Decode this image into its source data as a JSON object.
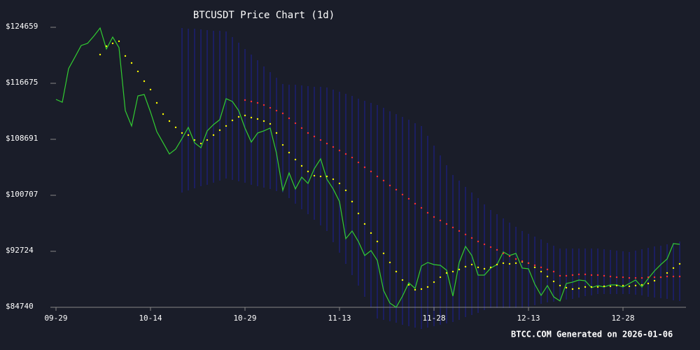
{
  "chart_data": {
    "type": "line",
    "title": "BTCUSDT Price Chart (1d)",
    "caption": "BTCC.COM Generated on 2026-01-06",
    "background": "#1a1d29",
    "categories": [
      "09-29",
      null,
      null,
      null,
      null,
      null,
      null,
      null,
      null,
      null,
      null,
      null,
      null,
      null,
      null,
      "10-14",
      null,
      null,
      null,
      null,
      null,
      null,
      null,
      null,
      null,
      null,
      null,
      null,
      null,
      null,
      "10-29",
      null,
      null,
      null,
      null,
      null,
      null,
      null,
      null,
      null,
      null,
      null,
      null,
      null,
      null,
      "11-13",
      null,
      null,
      null,
      null,
      null,
      null,
      null,
      null,
      null,
      null,
      null,
      null,
      null,
      null,
      "11-28",
      null,
      null,
      null,
      null,
      null,
      null,
      null,
      null,
      null,
      null,
      null,
      null,
      null,
      null,
      "12-13",
      null,
      null,
      null,
      null,
      null,
      null,
      null,
      null,
      null,
      null,
      null,
      null,
      null,
      null,
      "12-28",
      null,
      null,
      null,
      null,
      null,
      null,
      null,
      null,
      null
    ],
    "ylim": [
      84740,
      124659
    ],
    "yticks": [
      {
        "value": 84740,
        "label": "$84740"
      },
      {
        "value": 92724,
        "label": "$92724"
      },
      {
        "value": 100707,
        "label": "$100707"
      },
      {
        "value": 108691,
        "label": "$108691"
      },
      {
        "value": 116675,
        "label": "$116675"
      },
      {
        "value": 124659,
        "label": "$124659"
      }
    ],
    "band": {
      "color": "#1c1f6e",
      "upper": [
        null,
        null,
        null,
        null,
        null,
        null,
        null,
        null,
        null,
        null,
        null,
        null,
        null,
        null,
        null,
        null,
        null,
        null,
        null,
        null,
        124560,
        124460,
        124460,
        124360,
        124260,
        124160,
        124160,
        124060,
        123260,
        122465,
        121565,
        120770,
        119970,
        119070,
        118270,
        117475,
        116575,
        116475,
        116475,
        116375,
        116275,
        116175,
        116175,
        116075,
        115780,
        115480,
        115180,
        114880,
        114480,
        114180,
        113880,
        113580,
        113180,
        112685,
        112285,
        111885,
        111485,
        110990,
        110590,
        109190,
        107795,
        106395,
        104995,
        103600,
        102800,
        101905,
        101105,
        100310,
        99410,
        98610,
        98010,
        97415,
        96815,
        96220,
        95620,
        95220,
        94820,
        94420,
        93920,
        93520,
        93120,
        93120,
        93120,
        93120,
        93120,
        93120,
        93120,
        93020,
        92925,
        92825,
        92725,
        92625,
        92825,
        93020,
        93220,
        93420,
        93520,
        93720,
        93920,
        94120
      ],
      "lower": [
        null,
        null,
        null,
        null,
        null,
        null,
        null,
        null,
        null,
        null,
        null,
        null,
        null,
        null,
        null,
        null,
        null,
        null,
        null,
        null,
        101110,
        101410,
        101710,
        102005,
        102205,
        102505,
        102805,
        103105,
        102905,
        102705,
        102505,
        102205,
        102005,
        101805,
        101610,
        101310,
        101110,
        100310,
        99510,
        98710,
        98015,
        97215,
        96415,
        95620,
        94020,
        92525,
        90930,
        89330,
        87835,
        86235,
        84740,
        83143,
        82944,
        82744,
        82544,
        82245,
        82045,
        81846,
        81646,
        81846,
        82045,
        82245,
        82445,
        82644,
        82944,
        83343,
        83642,
        83942,
        84341,
        84640,
        84640,
        84640,
        84640,
        84640,
        84640,
        84840,
        85040,
        85239,
        85439,
        85539,
        85638,
        85838,
        85938,
        86137,
        86337,
        86437,
        86636,
        86636,
        86636,
        86636,
        86636,
        86636,
        86536,
        86437,
        86237,
        86137,
        86037,
        85938,
        85738,
        85638
      ]
    },
    "series": [
      {
        "color": "#32cd32",
        "style": "line",
        "values": [
          114381,
          113980,
          118770,
          120400,
          122065,
          122365,
          123400,
          124560,
          121570,
          123270,
          121770,
          112780,
          110590,
          114880,
          115080,
          112585,
          109790,
          108200,
          106600,
          107300,
          108800,
          110390,
          108190,
          107490,
          109890,
          110790,
          111490,
          114480,
          114080,
          112780,
          110290,
          108290,
          109590,
          109900,
          110290,
          106700,
          101410,
          103900,
          101610,
          103300,
          102400,
          104500,
          105900,
          103000,
          101610,
          99810,
          94520,
          95620,
          94120,
          92125,
          92825,
          91425,
          87135,
          85340,
          84740,
          86335,
          88230,
          87435,
          90630,
          91130,
          90830,
          90730,
          90030,
          86335,
          91130,
          93420,
          92125,
          89330,
          89330,
          90330,
          90830,
          92625,
          92125,
          92425,
          90330,
          90230,
          88035,
          86435,
          87835,
          86235,
          85640,
          88135,
          88330,
          88630,
          88530,
          87535,
          87835,
          87635,
          87935,
          87935,
          87635,
          88135,
          88630,
          87635,
          88830,
          89930,
          90830,
          91625,
          93820,
          93720
        ]
      },
      {
        "color": "#ffff00",
        "style": "dots",
        "values": [
          null,
          null,
          null,
          null,
          null,
          null,
          null,
          120770,
          121965,
          122365,
          122665,
          120570,
          119570,
          118370,
          116975,
          115780,
          113880,
          112285,
          111285,
          110390,
          109590,
          109290,
          108590,
          108090,
          108590,
          109290,
          109990,
          110590,
          111385,
          111885,
          112085,
          111785,
          111585,
          111285,
          110890,
          109590,
          107890,
          106795,
          105800,
          104900,
          104100,
          103500,
          103400,
          103400,
          103000,
          102400,
          101410,
          99810,
          98115,
          96620,
          95320,
          94120,
          92425,
          91130,
          89830,
          88630,
          87935,
          87235,
          87335,
          87635,
          88330,
          89030,
          89630,
          89830,
          90130,
          90530,
          90830,
          90430,
          90230,
          90430,
          90830,
          91030,
          90930,
          91030,
          91225,
          91030,
          90430,
          89830,
          89130,
          88430,
          87835,
          87535,
          87335,
          87435,
          87635,
          87635,
          87635,
          87735,
          87735,
          87835,
          87835,
          87735,
          87835,
          87935,
          88135,
          88530,
          89030,
          89630,
          90330,
          90930
        ]
      },
      {
        "color": "#ff3030",
        "style": "dots",
        "values": [
          null,
          null,
          null,
          null,
          null,
          null,
          null,
          null,
          null,
          null,
          null,
          null,
          null,
          null,
          null,
          null,
          null,
          null,
          null,
          null,
          null,
          null,
          null,
          null,
          null,
          null,
          null,
          null,
          null,
          null,
          114280,
          114080,
          113880,
          113580,
          113180,
          112780,
          112385,
          111685,
          110985,
          110290,
          109590,
          109090,
          108590,
          108090,
          107595,
          107095,
          106595,
          106095,
          105395,
          104700,
          104100,
          103400,
          102805,
          102105,
          101510,
          100810,
          100210,
          99510,
          98910,
          98215,
          97615,
          97115,
          96615,
          96120,
          95620,
          95120,
          94620,
          94120,
          93720,
          93320,
          92925,
          92425,
          92025,
          91625,
          91325,
          91030,
          90730,
          90430,
          90130,
          89830,
          89230,
          89230,
          89330,
          89430,
          89430,
          89330,
          89330,
          89230,
          89130,
          89030,
          89030,
          88930,
          88930,
          88930,
          89030,
          89030,
          89030,
          89130,
          89130,
          89130
        ]
      }
    ]
  }
}
